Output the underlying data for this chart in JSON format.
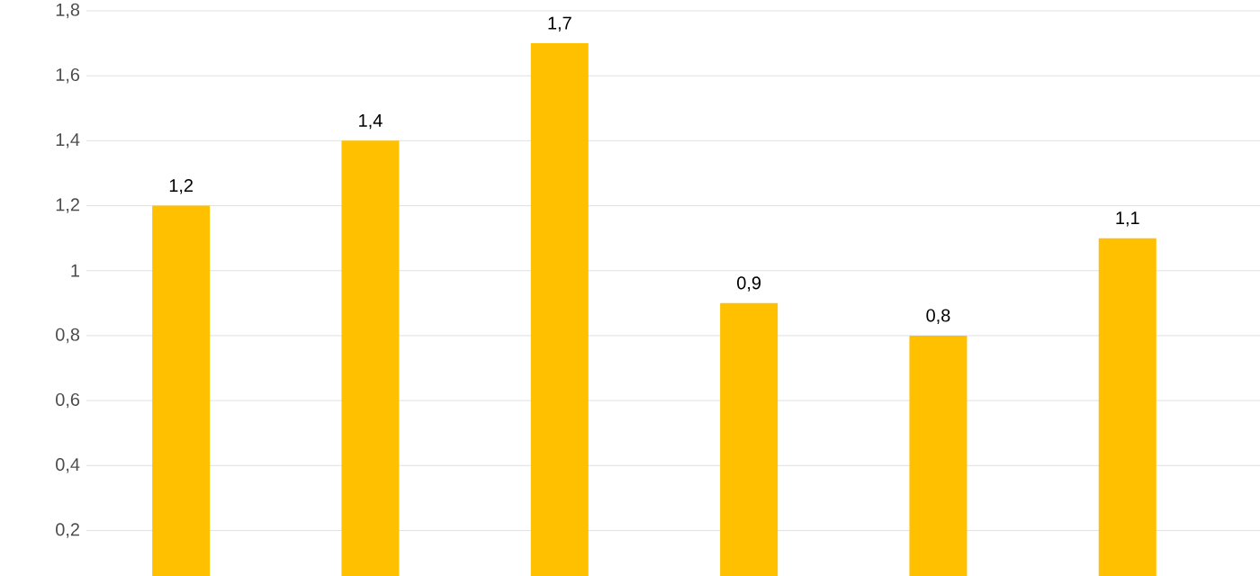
{
  "chart_data": {
    "type": "bar",
    "categories": [
      null,
      null,
      null,
      null,
      null,
      null
    ],
    "values": [
      1.2,
      1.4,
      1.7,
      0.9,
      0.8,
      1.1
    ],
    "value_labels": [
      "1,2",
      "1,4",
      "1,7",
      "0,9",
      "0,8",
      "1,1"
    ],
    "color": "#ffc000",
    "ylim": [
      0.06,
      1.8
    ],
    "yticks": [
      {
        "value": 0.2,
        "label": "0,2"
      },
      {
        "value": 0.4,
        "label": "0,4"
      },
      {
        "value": 0.6,
        "label": "0,6"
      },
      {
        "value": 0.8,
        "label": "0,8"
      },
      {
        "value": 1,
        "label": "1"
      },
      {
        "value": 1.2,
        "label": "1,2"
      },
      {
        "value": 1.4,
        "label": "1,4"
      },
      {
        "value": 1.6,
        "label": "1,6"
      },
      {
        "value": 1.8,
        "label": "1,8"
      }
    ],
    "grid": "y"
  }
}
